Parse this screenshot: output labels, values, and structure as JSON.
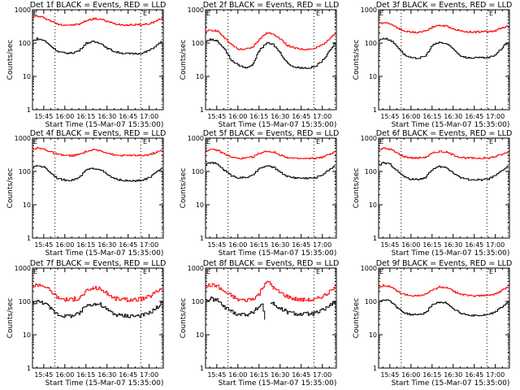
{
  "figure": {
    "xlabel": "Start Time (15-Mar-07 15:35:00)",
    "ylabel": "Counts/sec",
    "marker_label": "E"
  },
  "chart_data": [
    {
      "type": "line",
      "title": "Det 1f BLACK = Events, RED = LLD",
      "xlabel": "Start Time (15-Mar-07 15:35:00)",
      "ylabel": "Counts/sec",
      "yscale": "log",
      "ylim": [
        1,
        1000
      ],
      "ytick_labels": [
        "1",
        "10",
        "100",
        "1000"
      ],
      "xlim_minutes_after_1535": [
        2,
        95
      ],
      "xtick_labels": [
        "15:45",
        "16:00",
        "16:15",
        "16:30",
        "16:45",
        "17:00"
      ],
      "xtick_minutes_after_1535": [
        10,
        25,
        40,
        55,
        70,
        85
      ],
      "vlines_minutes_after_1535": [
        18,
        79,
        94
      ],
      "markers_E_minutes_after_1535": [
        2,
        80
      ],
      "x": [
        2,
        5,
        10,
        15,
        20,
        25,
        30,
        35,
        40,
        45,
        50,
        55,
        60,
        65,
        70,
        75,
        80,
        85,
        90,
        94
      ],
      "series": [
        {
          "name": "LLD",
          "color": "#ff0000",
          "values": [
            600,
            640,
            580,
            450,
            370,
            350,
            350,
            370,
            470,
            540,
            520,
            440,
            380,
            360,
            350,
            355,
            360,
            380,
            470,
            560
          ]
        },
        {
          "name": "Events",
          "color": "#000000",
          "values": [
            115,
            135,
            120,
            80,
            55,
            50,
            50,
            60,
            100,
            110,
            100,
            70,
            55,
            50,
            48,
            48,
            50,
            60,
            85,
            115
          ]
        }
      ]
    },
    {
      "type": "line",
      "title": "Det 2f BLACK = Events, RED = LLD",
      "xlabel": "Start Time (15-Mar-07 15:35:00)",
      "ylabel": "Counts/sec",
      "yscale": "log",
      "ylim": [
        1,
        1000
      ],
      "ytick_labels": [
        "1",
        "10",
        "100",
        "1000"
      ],
      "xlim_minutes_after_1535": [
        2,
        95
      ],
      "xtick_labels": [
        "15:45",
        "16:00",
        "16:15",
        "16:30",
        "16:45",
        "17:00"
      ],
      "xtick_minutes_after_1535": [
        10,
        25,
        40,
        55,
        70,
        85
      ],
      "vlines_minutes_after_1535": [
        18,
        79,
        94
      ],
      "markers_E_minutes_after_1535": [
        2,
        80
      ],
      "x": [
        2,
        5,
        10,
        15,
        20,
        25,
        30,
        35,
        40,
        45,
        50,
        55,
        60,
        65,
        70,
        75,
        80,
        85,
        90,
        94
      ],
      "series": [
        {
          "name": "LLD",
          "color": "#ff0000",
          "values": [
            210,
            250,
            230,
            150,
            90,
            65,
            65,
            75,
            130,
            200,
            190,
            130,
            85,
            70,
            65,
            65,
            70,
            90,
            140,
            200
          ]
        },
        {
          "name": "Events",
          "color": "#000000",
          "values": [
            110,
            130,
            115,
            70,
            30,
            22,
            18,
            22,
            60,
            100,
            90,
            50,
            25,
            19,
            18,
            18,
            20,
            30,
            60,
            100
          ]
        }
      ]
    },
    {
      "type": "line",
      "title": "Det 3f BLACK = Events, RED = LLD",
      "xlabel": "Start Time (15-Mar-07 15:35:00)",
      "ylabel": "Counts/sec",
      "yscale": "log",
      "ylim": [
        1,
        1000
      ],
      "ytick_labels": [
        "1",
        "10",
        "100",
        "1000"
      ],
      "xlim_minutes_after_1535": [
        2,
        95
      ],
      "xtick_labels": [
        "15:45",
        "16:00",
        "16:15",
        "16:30",
        "16:45",
        "17:00"
      ],
      "xtick_minutes_after_1535": [
        10,
        25,
        40,
        55,
        70,
        85
      ],
      "vlines_minutes_after_1535": [
        18,
        79,
        94
      ],
      "markers_E_minutes_after_1535": [
        2,
        80
      ],
      "x": [
        2,
        5,
        10,
        15,
        20,
        25,
        30,
        35,
        40,
        45,
        50,
        55,
        60,
        65,
        70,
        75,
        80,
        85,
        90,
        94
      ],
      "series": [
        {
          "name": "LLD",
          "color": "#ff0000",
          "values": [
            380,
            420,
            380,
            290,
            230,
            210,
            210,
            230,
            300,
            340,
            320,
            270,
            230,
            215,
            215,
            220,
            220,
            240,
            290,
            340
          ]
        },
        {
          "name": "Events",
          "color": "#000000",
          "values": [
            120,
            140,
            125,
            80,
            45,
            35,
            35,
            40,
            85,
            105,
            95,
            65,
            42,
            36,
            36,
            36,
            36,
            45,
            75,
            110
          ]
        }
      ]
    },
    {
      "type": "line",
      "title": "Det 4f BLACK = Events, RED = LLD",
      "xlabel": "Start Time (15-Mar-07 15:35:00)",
      "ylabel": "Counts/sec",
      "yscale": "log",
      "ylim": [
        1,
        1000
      ],
      "ytick_labels": [
        "1",
        "10",
        "100",
        "1000"
      ],
      "xlim_minutes_after_1535": [
        2,
        95
      ],
      "xtick_labels": [
        "15:45",
        "16:00",
        "16:15",
        "16:30",
        "16:45",
        "17:00"
      ],
      "xtick_minutes_after_1535": [
        10,
        25,
        40,
        55,
        70,
        85
      ],
      "vlines_minutes_after_1535": [
        18,
        79,
        94
      ],
      "markers_E_minutes_after_1535": [
        2,
        80
      ],
      "x": [
        2,
        5,
        10,
        15,
        20,
        25,
        30,
        35,
        40,
        45,
        50,
        55,
        60,
        65,
        70,
        75,
        80,
        85,
        90,
        94
      ],
      "series": [
        {
          "name": "LLD",
          "color": "#ff0000",
          "values": [
            480,
            500,
            470,
            380,
            320,
            300,
            300,
            320,
            400,
            440,
            420,
            360,
            310,
            300,
            300,
            300,
            300,
            320,
            380,
            440
          ]
        },
        {
          "name": "Events",
          "color": "#000000",
          "values": [
            130,
            150,
            135,
            90,
            60,
            55,
            55,
            65,
            110,
            125,
            115,
            80,
            60,
            55,
            52,
            52,
            55,
            65,
            95,
            130
          ]
        }
      ]
    },
    {
      "type": "line",
      "title": "Det 5f BLACK = Events, RED = LLD",
      "xlabel": "Start Time (15-Mar-07 15:35:00)",
      "ylabel": "Counts/sec",
      "yscale": "log",
      "ylim": [
        1,
        1000
      ],
      "ytick_labels": [
        "1",
        "10",
        "100",
        "1000"
      ],
      "xlim_minutes_after_1535": [
        2,
        95
      ],
      "xtick_labels": [
        "15:45",
        "16:00",
        "16:15",
        "16:30",
        "16:45",
        "17:00"
      ],
      "xtick_minutes_after_1535": [
        10,
        25,
        40,
        55,
        70,
        85
      ],
      "vlines_minutes_after_1535": [
        18,
        79,
        94
      ],
      "markers_E_minutes_after_1535": [
        2,
        80
      ],
      "x": [
        2,
        5,
        10,
        15,
        20,
        25,
        30,
        35,
        40,
        45,
        50,
        55,
        60,
        65,
        70,
        75,
        80,
        85,
        90,
        94
      ],
      "series": [
        {
          "name": "LLD",
          "color": "#ff0000",
          "values": [
            420,
            450,
            430,
            340,
            270,
            245,
            250,
            270,
            350,
            400,
            380,
            310,
            260,
            245,
            240,
            245,
            250,
            270,
            330,
            390
          ]
        },
        {
          "name": "Events",
          "color": "#000000",
          "values": [
            160,
            185,
            170,
            110,
            75,
            65,
            65,
            75,
            120,
            145,
            135,
            95,
            70,
            65,
            63,
            63,
            65,
            80,
            115,
            155
          ]
        }
      ]
    },
    {
      "type": "line",
      "title": "Det 6f BLACK = Events, RED = LLD",
      "xlabel": "Start Time (15-Mar-07 15:35:00)",
      "ylabel": "Counts/sec",
      "yscale": "log",
      "ylim": [
        1,
        1000
      ],
      "ytick_labels": [
        "1",
        "10",
        "100",
        "1000"
      ],
      "xlim_minutes_after_1535": [
        2,
        95
      ],
      "xtick_labels": [
        "15:45",
        "16:00",
        "16:15",
        "16:30",
        "16:45",
        "17:00"
      ],
      "xtick_minutes_after_1535": [
        10,
        25,
        40,
        55,
        70,
        85
      ],
      "vlines_minutes_after_1535": [
        18,
        79,
        94
      ],
      "markers_E_minutes_after_1535": [
        2,
        80
      ],
      "x": [
        2,
        5,
        10,
        15,
        20,
        25,
        30,
        35,
        40,
        45,
        50,
        55,
        60,
        65,
        70,
        75,
        80,
        85,
        90,
        94
      ],
      "series": [
        {
          "name": "LLD",
          "color": "#ff0000",
          "values": [
            450,
            500,
            470,
            350,
            280,
            255,
            255,
            270,
            350,
            400,
            380,
            310,
            265,
            255,
            250,
            250,
            255,
            280,
            330,
            390
          ]
        },
        {
          "name": "Events",
          "color": "#000000",
          "values": [
            155,
            180,
            165,
            105,
            68,
            58,
            58,
            65,
            115,
            140,
            130,
            90,
            65,
            58,
            56,
            56,
            60,
            75,
            110,
            145
          ]
        }
      ]
    },
    {
      "type": "line",
      "title": "Det 7f BLACK = Events, RED = LLD",
      "xlabel": "Start Time (15-Mar-07 15:35:00)",
      "ylabel": "Counts/sec",
      "yscale": "log",
      "ylim": [
        1,
        1000
      ],
      "ytick_labels": [
        "1",
        "10",
        "100",
        "1000"
      ],
      "xlim_minutes_after_1535": [
        2,
        95
      ],
      "xtick_labels": [
        "15:45",
        "16:00",
        "16:15",
        "16:30",
        "16:45",
        "17:00"
      ],
      "xtick_minutes_after_1535": [
        10,
        25,
        40,
        55,
        70,
        85
      ],
      "vlines_minutes_after_1535": [
        18,
        79,
        94
      ],
      "markers_E_minutes_after_1535": [
        2,
        80
      ],
      "x": [
        2,
        5,
        10,
        15,
        20,
        25,
        30,
        35,
        40,
        45,
        50,
        55,
        60,
        65,
        70,
        75,
        80,
        85,
        90,
        94
      ],
      "series": [
        {
          "name": "LLD",
          "color": "#ff0000",
          "values": [
            280,
            330,
            300,
            200,
            130,
            115,
            115,
            125,
            200,
            260,
            240,
            170,
            125,
            115,
            112,
            115,
            120,
            140,
            200,
            260
          ]
        },
        {
          "name": "Events",
          "color": "#000000",
          "values": [
            90,
            100,
            90,
            60,
            40,
            37,
            37,
            42,
            75,
            85,
            80,
            55,
            42,
            38,
            37,
            37,
            38,
            45,
            65,
            90
          ]
        }
      ]
    },
    {
      "type": "line",
      "title": "Det 8f BLACK = Events, RED = LLD",
      "xlabel": "Start Time (15-Mar-07 15:35:00)",
      "ylabel": "Counts/sec",
      "yscale": "log",
      "ylim": [
        1,
        1000
      ],
      "ytick_labels": [
        "1",
        "10",
        "100",
        "1000"
      ],
      "xlim_minutes_after_1535": [
        2,
        95
      ],
      "xtick_labels": [
        "15:45",
        "16:00",
        "16:15",
        "16:30",
        "16:45",
        "17:00"
      ],
      "xtick_minutes_after_1535": [
        10,
        25,
        40,
        55,
        70,
        85
      ],
      "vlines_minutes_after_1535": [
        18,
        79,
        94
      ],
      "markers_E_minutes_after_1535": [
        2,
        80
      ],
      "x": [
        2,
        5,
        10,
        15,
        20,
        25,
        30,
        35,
        40,
        42,
        44,
        46,
        48,
        50,
        55,
        60,
        65,
        70,
        75,
        80,
        85,
        90,
        94
      ],
      "series": [
        {
          "name": "LLD",
          "color": "#ff0000",
          "values": [
            280,
            310,
            290,
            200,
            150,
            115,
            110,
            120,
            170,
            260,
            370,
            380,
            330,
            250,
            180,
            140,
            120,
            112,
            110,
            115,
            140,
            190,
            260
          ]
        },
        {
          "name": "Events",
          "color": "#000000",
          "values": [
            110,
            120,
            110,
            70,
            50,
            42,
            40,
            45,
            70,
            85,
            30,
            null,
            90,
            85,
            60,
            48,
            43,
            42,
            42,
            44,
            55,
            75,
            100
          ]
        }
      ]
    },
    {
      "type": "line",
      "title": "Det 9f BLACK = Events, RED = LLD",
      "xlabel": "Start Time (15-Mar-07 15:35:00)",
      "ylabel": "Counts/sec",
      "yscale": "log",
      "ylim": [
        1,
        1000
      ],
      "ytick_labels": [
        "1",
        "10",
        "100",
        "1000"
      ],
      "xlim_minutes_after_1535": [
        2,
        95
      ],
      "xtick_labels": [
        "15:45",
        "16:00",
        "16:15",
        "16:30",
        "16:45",
        "17:00"
      ],
      "xtick_minutes_after_1535": [
        10,
        25,
        40,
        55,
        70,
        85
      ],
      "vlines_minutes_after_1535": [
        18,
        79,
        94
      ],
      "markers_E_minutes_after_1535": [
        2,
        80
      ],
      "x": [
        2,
        5,
        10,
        15,
        20,
        25,
        30,
        35,
        40,
        45,
        50,
        55,
        60,
        65,
        70,
        75,
        80,
        85,
        90,
        94
      ],
      "series": [
        {
          "name": "LLD",
          "color": "#ff0000",
          "values": [
            270,
            300,
            280,
            200,
            160,
            150,
            150,
            165,
            220,
            270,
            260,
            200,
            165,
            150,
            148,
            148,
            150,
            170,
            220,
            280
          ]
        },
        {
          "name": "Events",
          "color": "#000000",
          "values": [
            100,
            115,
            105,
            65,
            45,
            40,
            40,
            45,
            80,
            95,
            90,
            60,
            45,
            40,
            38,
            38,
            40,
            50,
            70,
            100
          ]
        }
      ]
    }
  ]
}
